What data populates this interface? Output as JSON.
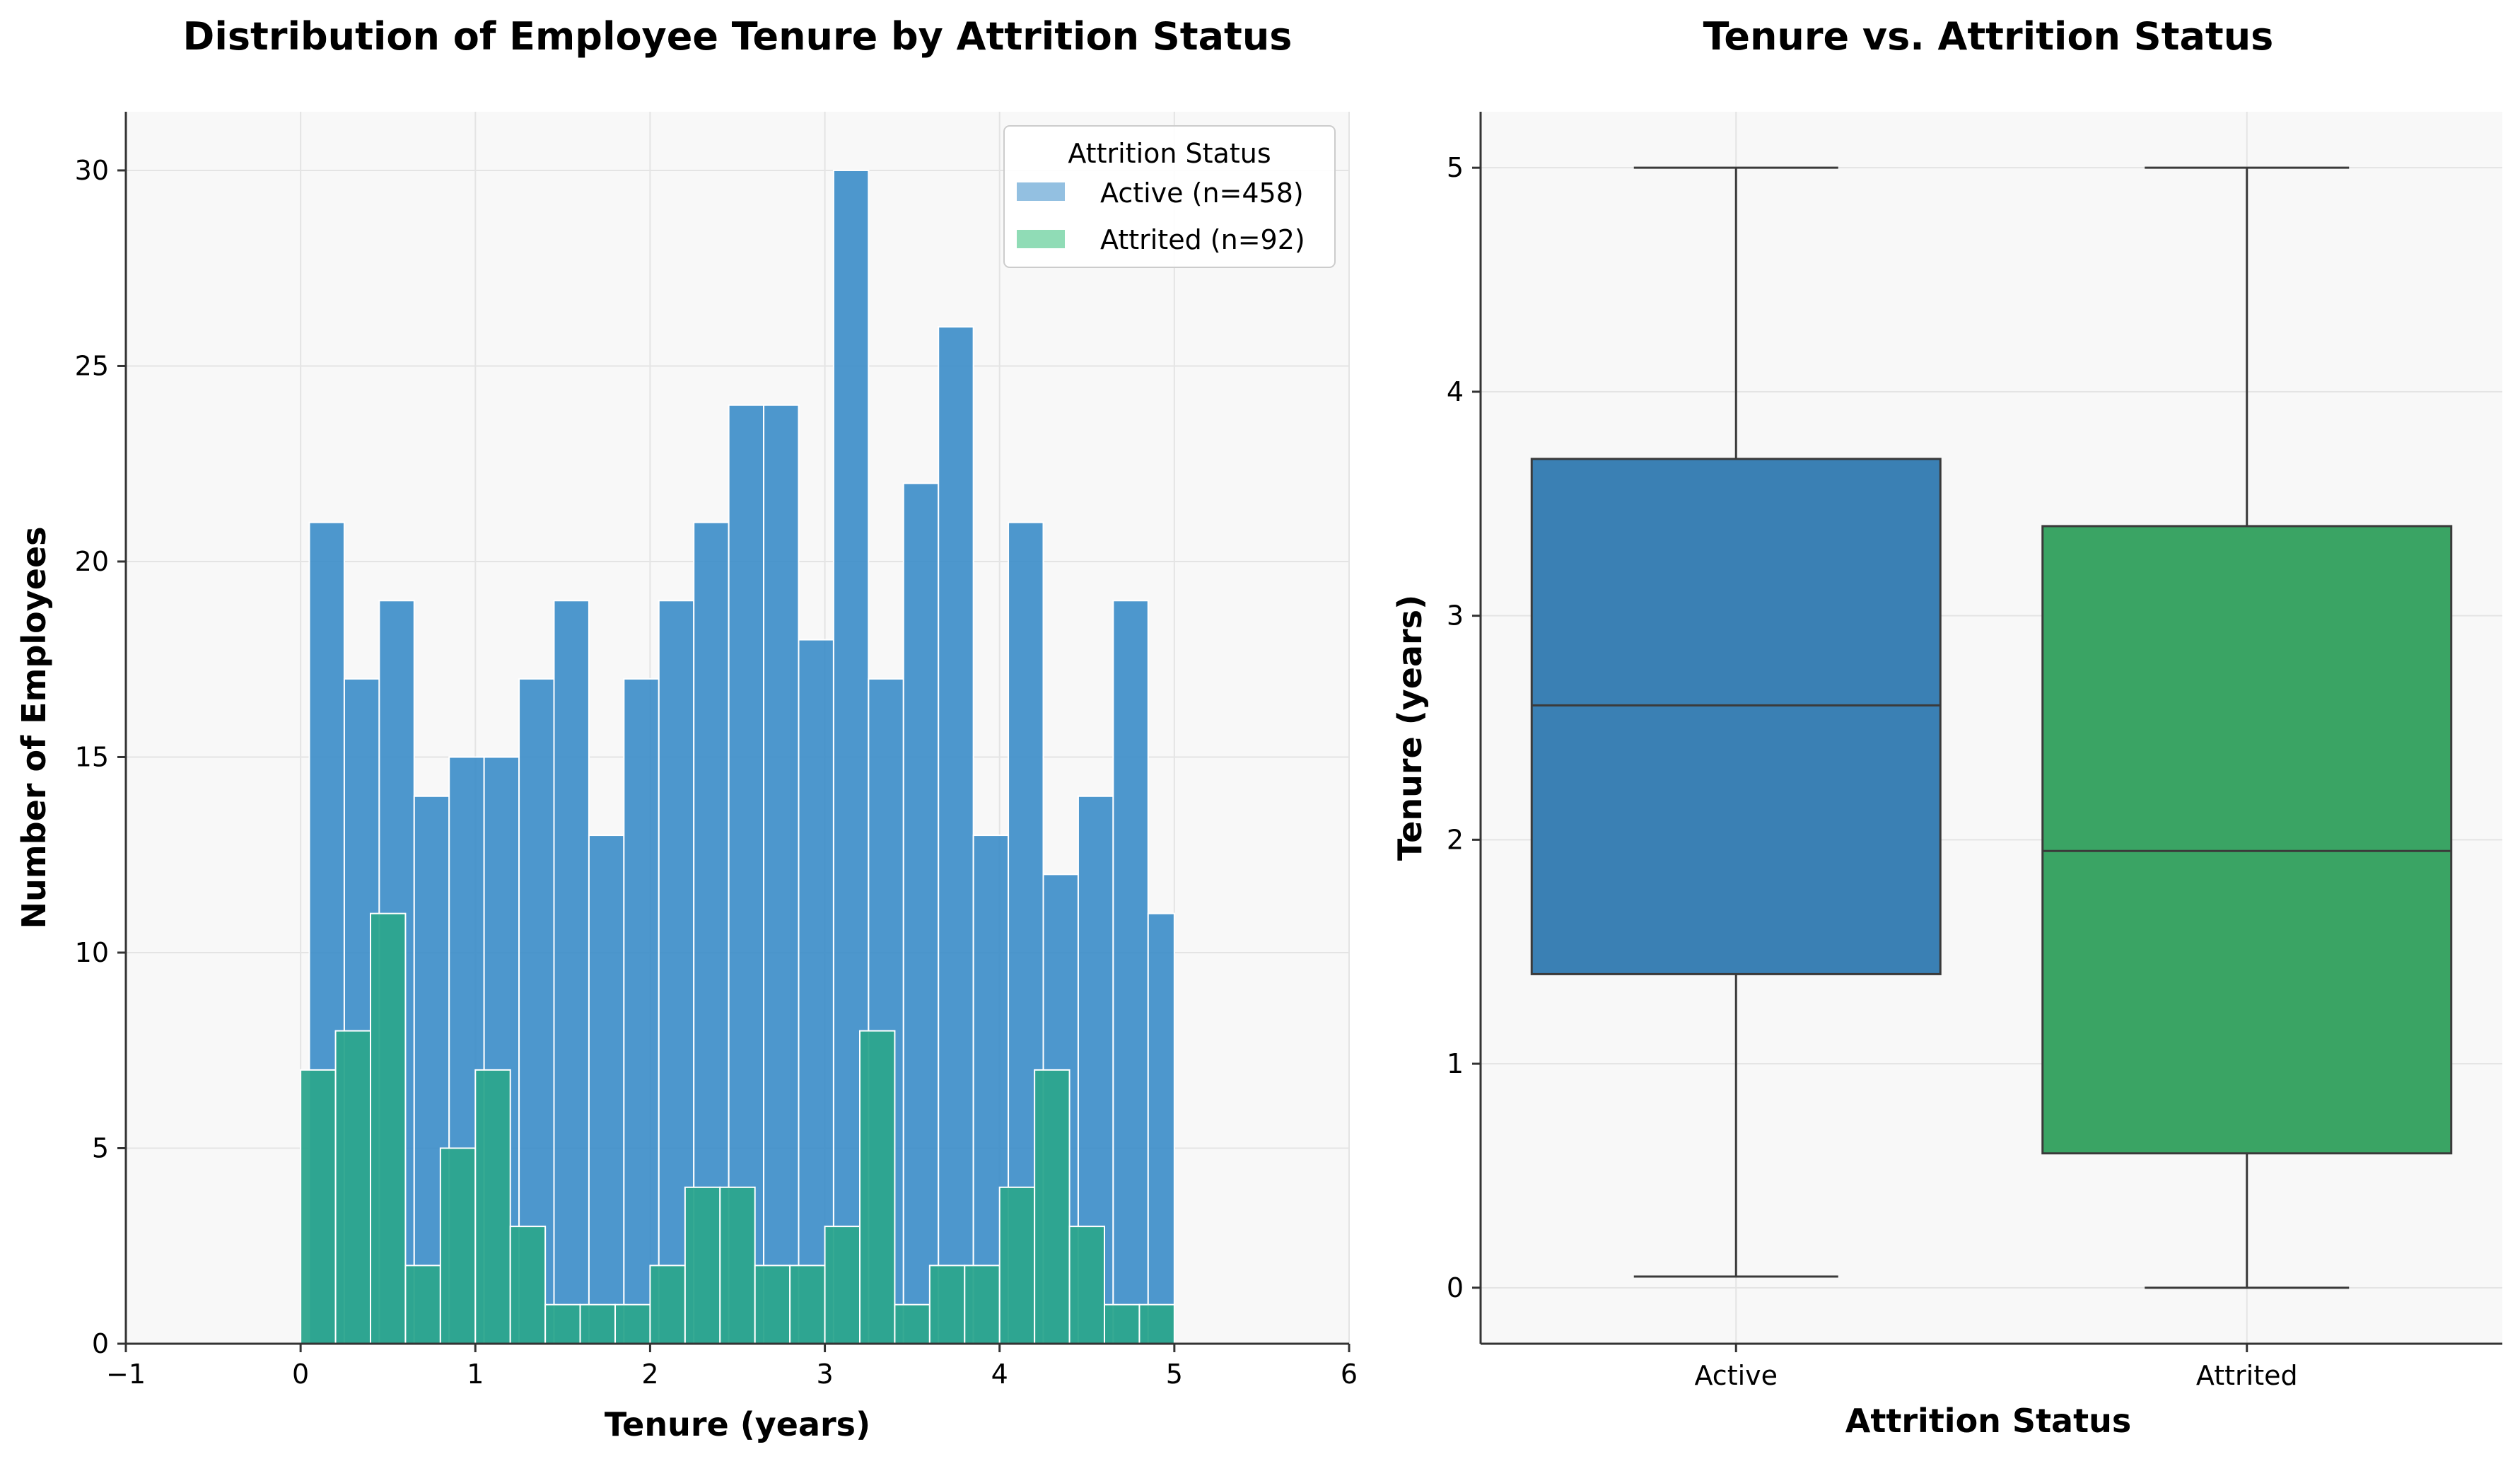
{
  "colors": {
    "active": "#3a8cc8",
    "attrited": "#2ca58d",
    "active_box": "#3a80b4",
    "attrited_box": "#3aa464",
    "axes_bg": "#f8f8f8",
    "grid": "#e4e4e4",
    "line": "#3a3a3a"
  },
  "chart_data": [
    {
      "type": "histogram",
      "title": "Distribution of Employee Tenure by Attrition Status",
      "xlabel": "Tenure (years)",
      "ylabel": "Number of Employees",
      "xlim": [
        -1,
        6
      ],
      "ylim": [
        0,
        31.5
      ],
      "xticks": [
        -1,
        0,
        1,
        2,
        3,
        4,
        5,
        6
      ],
      "xtick_labels": [
        "−1",
        "0",
        "1",
        "2",
        "3",
        "4",
        "5",
        "6"
      ],
      "yticks": [
        0,
        5,
        10,
        15,
        20,
        25,
        30
      ],
      "ytick_labels": [
        "0",
        "5",
        "10",
        "15",
        "20",
        "25",
        "30"
      ],
      "grid": true,
      "legend": {
        "title": "Attrition Status",
        "position": "top-right",
        "entries": [
          "Active (n=458)",
          "Attrited (n=92)"
        ]
      },
      "series": [
        {
          "name": "Active (n=458)",
          "bins": [
            {
              "x0": 0.05,
              "x1": 0.25,
              "count": 21
            },
            {
              "x0": 0.25,
              "x1": 0.45,
              "count": 17
            },
            {
              "x0": 0.45,
              "x1": 0.65,
              "count": 19
            },
            {
              "x0": 0.65,
              "x1": 0.85,
              "count": 14
            },
            {
              "x0": 0.85,
              "x1": 1.05,
              "count": 15
            },
            {
              "x0": 1.05,
              "x1": 1.25,
              "count": 15
            },
            {
              "x0": 1.25,
              "x1": 1.45,
              "count": 17
            },
            {
              "x0": 1.45,
              "x1": 1.65,
              "count": 19
            },
            {
              "x0": 1.65,
              "x1": 1.85,
              "count": 13
            },
            {
              "x0": 1.85,
              "x1": 2.05,
              "count": 17
            },
            {
              "x0": 2.05,
              "x1": 2.25,
              "count": 19
            },
            {
              "x0": 2.25,
              "x1": 2.45,
              "count": 21
            },
            {
              "x0": 2.45,
              "x1": 2.65,
              "count": 24
            },
            {
              "x0": 2.65,
              "x1": 2.85,
              "count": 24
            },
            {
              "x0": 2.85,
              "x1": 3.05,
              "count": 18
            },
            {
              "x0": 3.05,
              "x1": 3.25,
              "count": 30
            },
            {
              "x0": 3.25,
              "x1": 3.45,
              "count": 17
            },
            {
              "x0": 3.45,
              "x1": 3.65,
              "count": 22
            },
            {
              "x0": 3.65,
              "x1": 3.85,
              "count": 26
            },
            {
              "x0": 3.85,
              "x1": 4.05,
              "count": 13
            },
            {
              "x0": 4.05,
              "x1": 4.25,
              "count": 21
            },
            {
              "x0": 4.25,
              "x1": 4.45,
              "count": 12
            },
            {
              "x0": 4.45,
              "x1": 4.65,
              "count": 14
            },
            {
              "x0": 4.65,
              "x1": 4.85,
              "count": 19
            },
            {
              "x0": 4.85,
              "x1": 5.0,
              "count": 11
            }
          ]
        },
        {
          "name": "Attrited (n=92)",
          "bins": [
            {
              "x0": 0.0,
              "x1": 0.2,
              "count": 7
            },
            {
              "x0": 0.2,
              "x1": 0.4,
              "count": 8
            },
            {
              "x0": 0.4,
              "x1": 0.6,
              "count": 11
            },
            {
              "x0": 0.6,
              "x1": 0.8,
              "count": 2
            },
            {
              "x0": 0.8,
              "x1": 1.0,
              "count": 5
            },
            {
              "x0": 1.0,
              "x1": 1.2,
              "count": 7
            },
            {
              "x0": 1.2,
              "x1": 1.4,
              "count": 3
            },
            {
              "x0": 1.4,
              "x1": 1.6,
              "count": 1
            },
            {
              "x0": 1.6,
              "x1": 1.8,
              "count": 1
            },
            {
              "x0": 1.8,
              "x1": 2.0,
              "count": 1
            },
            {
              "x0": 2.0,
              "x1": 2.2,
              "count": 2
            },
            {
              "x0": 2.2,
              "x1": 2.4,
              "count": 4
            },
            {
              "x0": 2.4,
              "x1": 2.6,
              "count": 4
            },
            {
              "x0": 2.6,
              "x1": 2.8,
              "count": 2
            },
            {
              "x0": 2.8,
              "x1": 3.0,
              "count": 2
            },
            {
              "x0": 3.0,
              "x1": 3.2,
              "count": 3
            },
            {
              "x0": 3.2,
              "x1": 3.4,
              "count": 8
            },
            {
              "x0": 3.4,
              "x1": 3.6,
              "count": 1
            },
            {
              "x0": 3.6,
              "x1": 3.8,
              "count": 2
            },
            {
              "x0": 3.8,
              "x1": 4.0,
              "count": 2
            },
            {
              "x0": 4.0,
              "x1": 4.2,
              "count": 4
            },
            {
              "x0": 4.2,
              "x1": 4.4,
              "count": 7
            },
            {
              "x0": 4.4,
              "x1": 4.6,
              "count": 3
            },
            {
              "x0": 4.6,
              "x1": 4.8,
              "count": 1
            },
            {
              "x0": 4.8,
              "x1": 5.0,
              "count": 1
            }
          ]
        }
      ]
    },
    {
      "type": "box",
      "title": "Tenure vs. Attrition Status",
      "xlabel": "Attrition Status",
      "ylabel": "Tenure (years)",
      "ylim": [
        -0.25,
        5.25
      ],
      "yticks": [
        0,
        1,
        2,
        3,
        4,
        5
      ],
      "ytick_labels": [
        "0",
        "1",
        "2",
        "3",
        "4",
        "5"
      ],
      "grid": true,
      "categories": [
        "Active",
        "Attrited"
      ],
      "boxes": [
        {
          "name": "Active",
          "whisker_low": 0.05,
          "q1": 1.4,
          "median": 2.6,
          "q3": 3.7,
          "whisker_high": 5.0
        },
        {
          "name": "Attrited",
          "whisker_low": 0.0,
          "q1": 0.6,
          "median": 1.95,
          "q3": 3.4,
          "whisker_high": 5.0
        }
      ]
    }
  ]
}
